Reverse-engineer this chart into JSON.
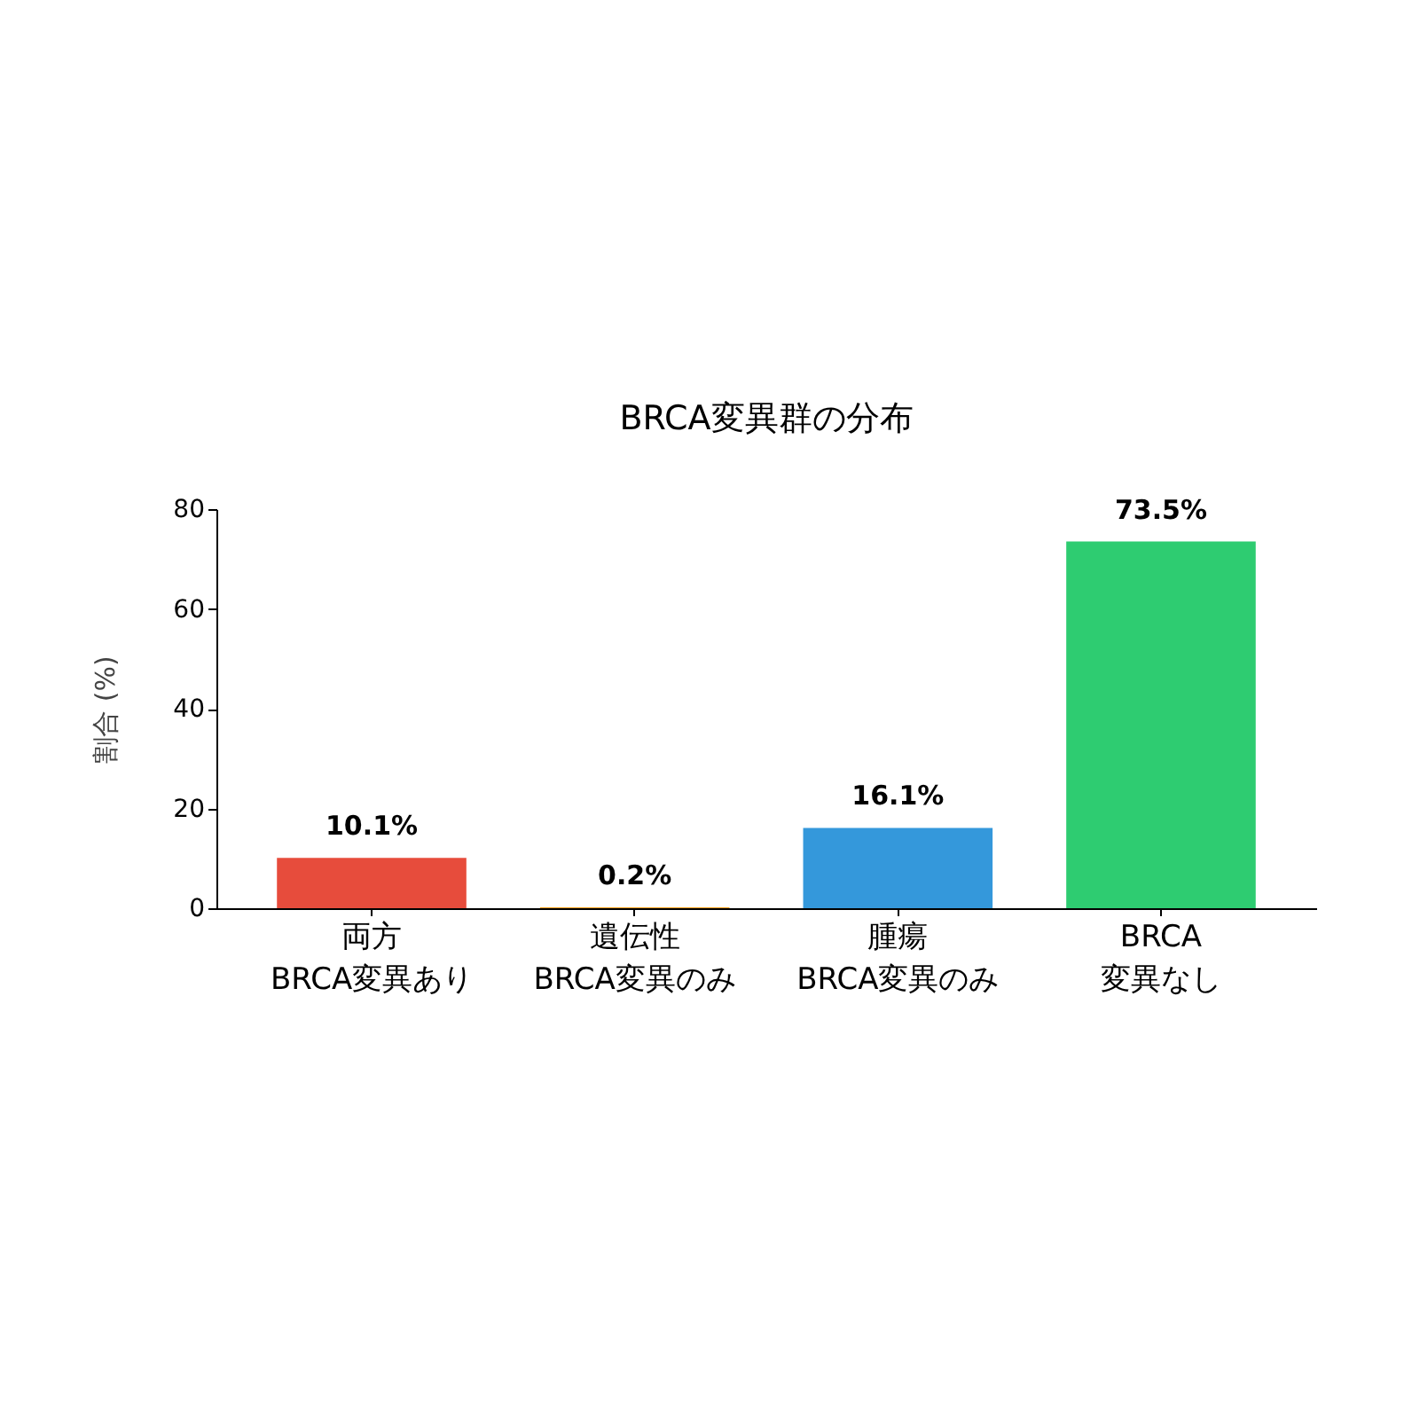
{
  "chart_data": {
    "type": "bar",
    "title": "BRCA変異群の分布",
    "ylabel": "割合 (%)",
    "categories": [
      "両方\nBRCA変異あり",
      "遺伝性\nBRCA変異のみ",
      "腫瘍\nBRCA変異のみ",
      "BRCA\n変異なし"
    ],
    "values": [
      10.1,
      0.2,
      16.1,
      73.5
    ],
    "colors": [
      "#e74c3c",
      "#f39c12",
      "#3498db",
      "#2ecc71"
    ],
    "value_labels": [
      "10.1%",
      "0.2%",
      "16.1%",
      "73.5%"
    ],
    "ylim": [
      0,
      80
    ],
    "yticks": [
      0,
      20,
      40,
      60,
      80
    ]
  }
}
